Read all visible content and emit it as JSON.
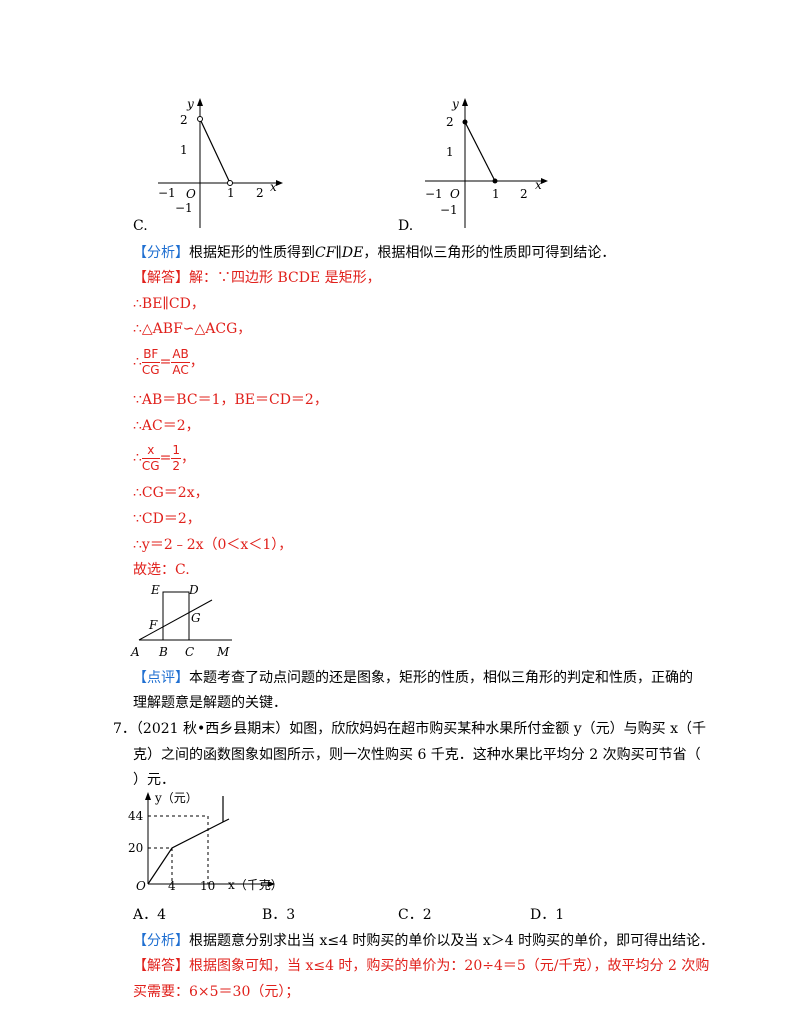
{
  "graph_c": {
    "option_label": "C.",
    "axis_y": "y",
    "axis_x": "x",
    "origin": "O",
    "tick_x": [
      "−1",
      "1",
      "2"
    ],
    "tick_y": [
      "2",
      "1",
      "−1"
    ]
  },
  "graph_d": {
    "option_label": "D.",
    "axis_y": "y",
    "axis_x": "x",
    "origin": "O",
    "tick_x": [
      "−1",
      "1",
      "2"
    ],
    "tick_y": [
      "2",
      "1",
      "−1"
    ]
  },
  "q6": {
    "analysis_tag": "【分析】",
    "analysis_text_1": "根据矩形的性质得到",
    "analysis_formula": "CF∥DE",
    "analysis_text_2": "，根据相似三角形的性质即可得到结论．",
    "answer_tag": "【解答】",
    "answer_lines": [
      "解：∵四边形 BCDE 是矩形，",
      "∴BE∥CD，",
      "∴△ABF∽△ACG，"
    ],
    "frac1": {
      "prefix": "∴",
      "num_left": "BF",
      "den_left": "CG",
      "eq": "=",
      "num_right": "AB",
      "den_right": "AC",
      "suffix": "，"
    },
    "answer_lines_2": [
      "∵AB＝BC＝1，BE＝CD＝2，",
      "∴AC＝2，"
    ],
    "frac2": {
      "prefix": "∴",
      "num_left": "x",
      "den_left": "CG",
      "eq": "=",
      "num_right": "1",
      "den_right": "2",
      "suffix": "，"
    },
    "answer_lines_3": [
      "∴CG＝2x，",
      "∵CD＝2，",
      "∴y＝2﹣2x（0＜x＜1），",
      "故选：C."
    ],
    "figure_labels": {
      "E": "E",
      "D": "D",
      "F": "F",
      "G": "G",
      "A": "A",
      "B": "B",
      "C": "C",
      "M": "M"
    },
    "comment_tag": "【点评】",
    "comment_line_1": "本题考查了动点问题的还是图象，矩形的性质，相似三角形的判定和性质，正确的",
    "comment_line_2": "理解题意是解题的关键．"
  },
  "q7": {
    "number": "7．",
    "stem_line_1": "（2021 秋•西乡县期末）如图，欣欣妈妈在超市购买某种水果所付金额 y（元）与购买 x（千",
    "stem_line_2": "克）之间的函数图象如图所示，则一次性购买 6 千克．这种水果比平均分 2 次购买可节省（",
    "stem_line_3": "）元．",
    "graph": {
      "y_label": "y（元）",
      "x_label": "x（千克）",
      "origin": "O",
      "y_ticks": [
        "44",
        "20"
      ],
      "x_ticks": [
        "4",
        "10"
      ]
    },
    "options": [
      "A．4",
      "B．3",
      "C．2",
      "D．1"
    ],
    "analysis_tag": "【分析】",
    "analysis_text": "根据题意分别求出当 x≤4 时购买的单价以及当 x＞4 时购买的单价，即可得出结论．",
    "answer_tag": "【解答】",
    "answer_line_1": "根据图象可知，当 x≤4 时，购买的单价为：20÷4＝5（元/千克），故平均分 2 次购",
    "answer_line_2": "买需要：6×5＝30（元）；"
  }
}
